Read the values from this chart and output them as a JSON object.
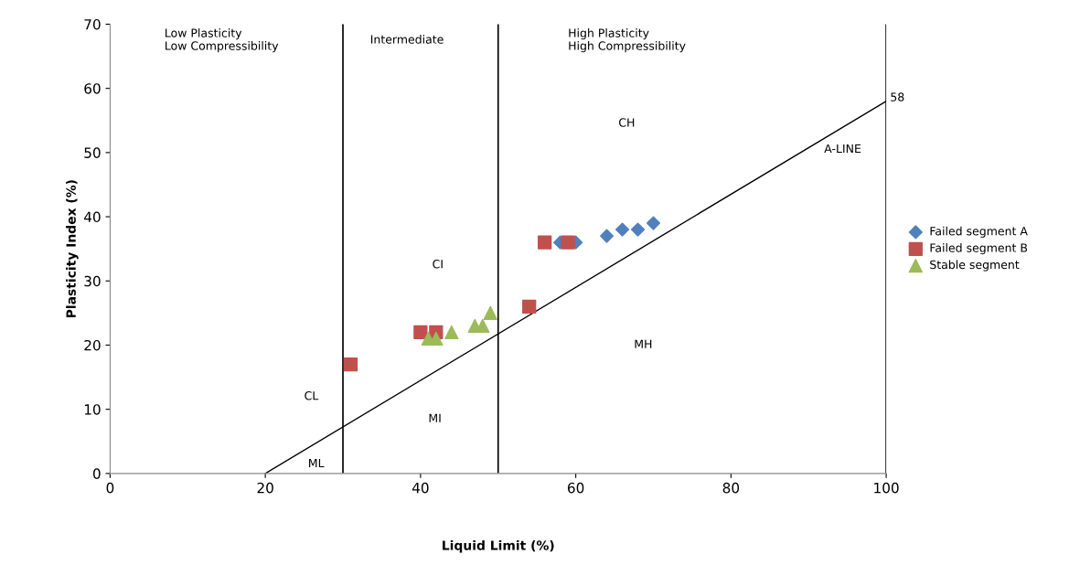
{
  "chart_data": {
    "type": "scatter",
    "xlabel": "Liquid Limit (%)",
    "ylabel": "Plasticity Index (%)",
    "xlim": [
      0,
      100
    ],
    "ylim": [
      0,
      70
    ],
    "xticks": [
      0,
      20,
      40,
      60,
      80,
      100
    ],
    "yticks": [
      0,
      10,
      20,
      30,
      40,
      50,
      60,
      70
    ],
    "grid": false,
    "legend": "right",
    "series": [
      {
        "name": "Failed segment A",
        "color": "#4f81bd",
        "marker": "diamond",
        "x": [
          58,
          60,
          64,
          66,
          68,
          70
        ],
        "values": [
          36,
          36,
          37,
          38,
          38,
          39
        ]
      },
      {
        "name": "Failed segment B",
        "color": "#c0504d",
        "marker": "square",
        "x": [
          31,
          40,
          42,
          54,
          56,
          59
        ],
        "values": [
          17,
          22,
          22,
          26,
          36,
          36
        ]
      },
      {
        "name": "Stable segment",
        "color": "#9bbb59",
        "marker": "triangle",
        "x": [
          41,
          42,
          44,
          47,
          48,
          49
        ],
        "values": [
          21,
          21,
          22,
          23,
          23,
          25
        ]
      },
      {
        "type": "line",
        "color": "#000000",
        "marker": "none",
        "x": [
          20,
          100
        ],
        "values": [
          0,
          58
        ]
      }
    ],
    "ref_lines": [
      {
        "axis": "x",
        "value": 30,
        "color": "#000000"
      },
      {
        "axis": "x",
        "value": 50,
        "color": "#000000"
      },
      {
        "axis": "x",
        "value": 100,
        "color": "#000000"
      }
    ],
    "annotations": [
      "Low Plasticity\nLow Compressibility",
      "Intermediate",
      "High Plasticity\nHigh Compressibility",
      "CH",
      "CI",
      "CL",
      "MI",
      "ML",
      "MH",
      "A-LINE",
      {
        "text": "58",
        "x": 100.5,
        "y": 58.5
      }
    ]
  }
}
